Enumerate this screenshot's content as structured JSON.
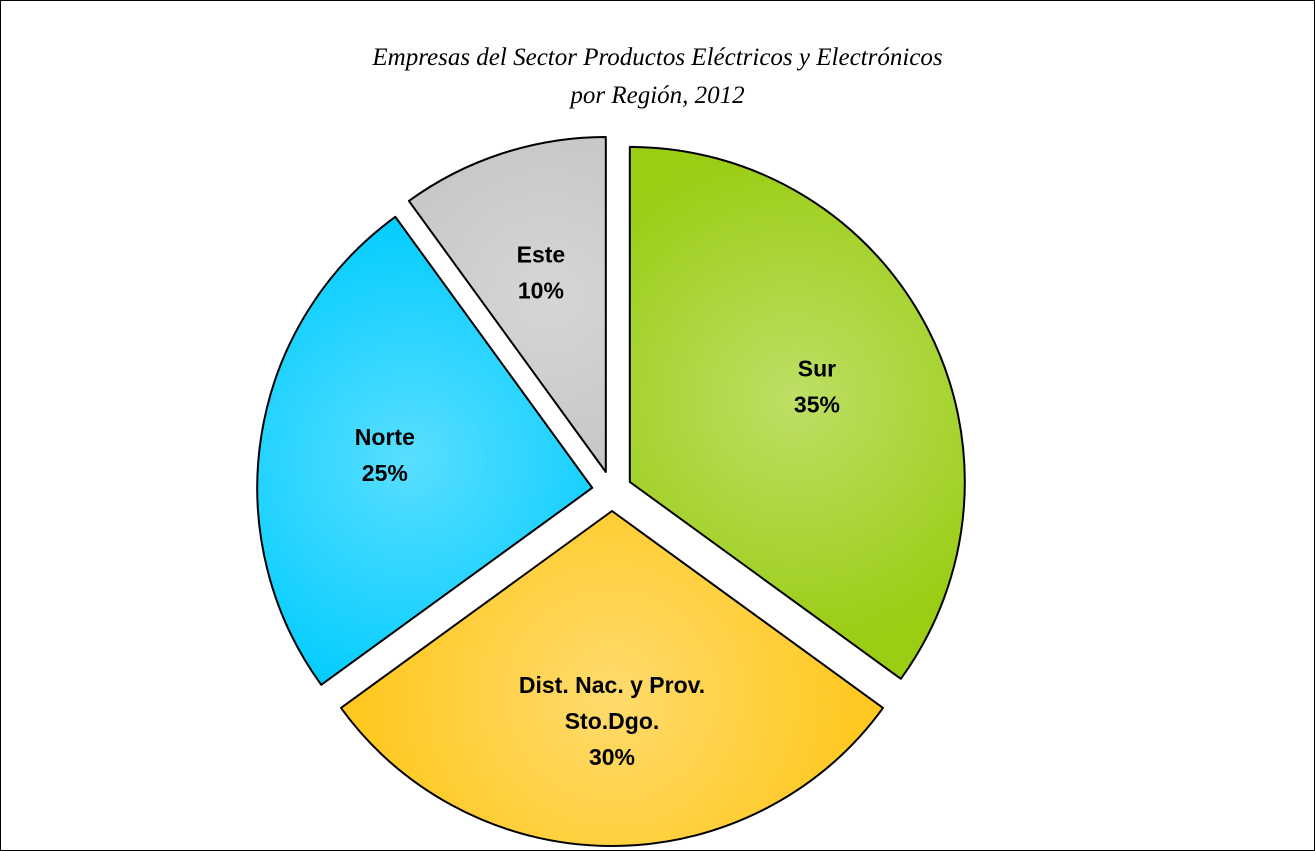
{
  "chart_data": {
    "type": "pie",
    "title": [
      "Empresas del Sector Productos Eléctricos y Electrónicos",
      "por Región, 2012"
    ],
    "slices": [
      {
        "name": "Sur",
        "label_lines": [
          "Sur"
        ],
        "value": 35,
        "value_label": "35%",
        "color": "#9ACD14"
      },
      {
        "name": "Dist. Nac. y Prov. Sto.Dgo.",
        "label_lines": [
          "Dist. Nac. y  Prov.",
          "Sto.Dgo."
        ],
        "value": 30,
        "value_label": "30%",
        "color": "#FFC820"
      },
      {
        "name": "Norte",
        "label_lines": [
          "Norte"
        ],
        "value": 25,
        "value_label": "25%",
        "color": "#00CCFF"
      },
      {
        "name": "Este",
        "label_lines": [
          "Este"
        ],
        "value": 10,
        "value_label": "10%",
        "color": "#C0C0C0"
      }
    ],
    "legend": "none",
    "data_labels": "inside"
  }
}
